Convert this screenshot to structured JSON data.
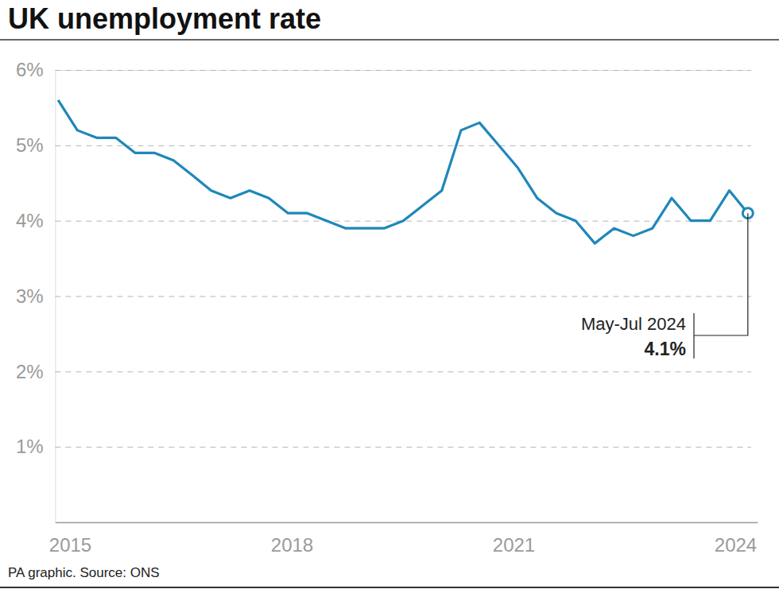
{
  "chart_data": {
    "type": "line",
    "title": "UK unemployment rate",
    "source": "PA graphic. Source: ONS",
    "x": [
      2014.84,
      2015.1,
      2015.36,
      2015.62,
      2015.88,
      2016.14,
      2016.4,
      2016.66,
      2016.91,
      2017.17,
      2017.43,
      2017.69,
      2017.95,
      2018.21,
      2018.47,
      2018.73,
      2018.99,
      2019.25,
      2019.51,
      2019.77,
      2020.03,
      2020.29,
      2020.54,
      2020.8,
      2021.06,
      2021.32,
      2021.58,
      2021.84,
      2022.1,
      2022.36,
      2022.62,
      2022.88,
      2023.14,
      2023.4,
      2023.66,
      2023.92,
      2024.17
    ],
    "series": [
      {
        "color": "#1f87b9",
        "values": [
          5.6,
          5.2,
          5.1,
          5.1,
          4.9,
          4.9,
          4.8,
          4.6,
          4.4,
          4.3,
          4.4,
          4.3,
          4.1,
          4.1,
          4.0,
          3.9,
          3.9,
          3.9,
          4.0,
          4.2,
          4.4,
          5.2,
          5.3,
          5.0,
          4.7,
          4.3,
          4.1,
          4.0,
          3.7,
          3.9,
          3.8,
          3.9,
          4.3,
          4.0,
          4.0,
          4.4,
          4.1
        ]
      }
    ],
    "xlim": [
      2014.8,
      2024.3
    ],
    "xticks": [
      2015,
      2018,
      2021,
      2024
    ],
    "ylim": [
      0,
      6
    ],
    "yticks": [
      {
        "value": 1,
        "label": "1%"
      },
      {
        "value": 2,
        "label": "2%"
      },
      {
        "value": 3,
        "label": "3%"
      },
      {
        "value": 4,
        "label": "4%"
      },
      {
        "value": 5,
        "label": "5%"
      },
      {
        "value": 6,
        "label": "6%"
      }
    ],
    "grid": true,
    "annotations": [
      {
        "x": 2024.17,
        "y": 4.1,
        "text": "May-Jul 2024",
        "value_label": "4.1%"
      }
    ]
  }
}
